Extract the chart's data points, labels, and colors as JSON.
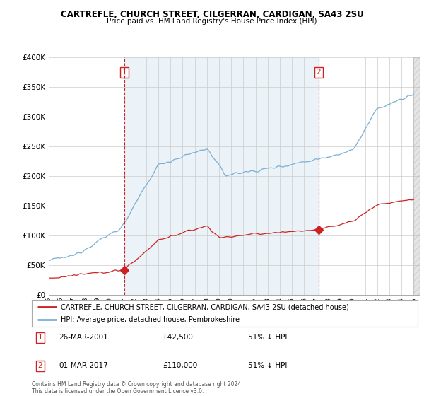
{
  "title": "CARTREFLE, CHURCH STREET, CILGERRAN, CARDIGAN, SA43 2SU",
  "subtitle": "Price paid vs. HM Land Registry's House Price Index (HPI)",
  "ylim": [
    0,
    400000
  ],
  "yticks": [
    0,
    50000,
    100000,
    150000,
    200000,
    250000,
    300000,
    350000,
    400000
  ],
  "ytick_labels": [
    "£0",
    "£50K",
    "£100K",
    "£150K",
    "£200K",
    "£250K",
    "£300K",
    "£350K",
    "£400K"
  ],
  "sale1_year": 2001.23,
  "sale1_price": 42500,
  "sale2_year": 2017.17,
  "sale2_price": 110000,
  "red_color": "#cc2222",
  "blue_color": "#7bafd4",
  "blue_fill": "#ddeeff",
  "legend_entry1": "CARTREFLE, CHURCH STREET, CILGERRAN, CARDIGAN, SA43 2SU (detached house)",
  "legend_entry2": "HPI: Average price, detached house, Pembrokeshire",
  "table_row1": [
    "1",
    "26-MAR-2001",
    "£42,500",
    "51% ↓ HPI"
  ],
  "table_row2": [
    "2",
    "01-MAR-2017",
    "£110,000",
    "51% ↓ HPI"
  ],
  "footer": "Contains HM Land Registry data © Crown copyright and database right 2024.\nThis data is licensed under the Open Government Licence v3.0.",
  "background_color": "#ffffff",
  "grid_color": "#cccccc"
}
